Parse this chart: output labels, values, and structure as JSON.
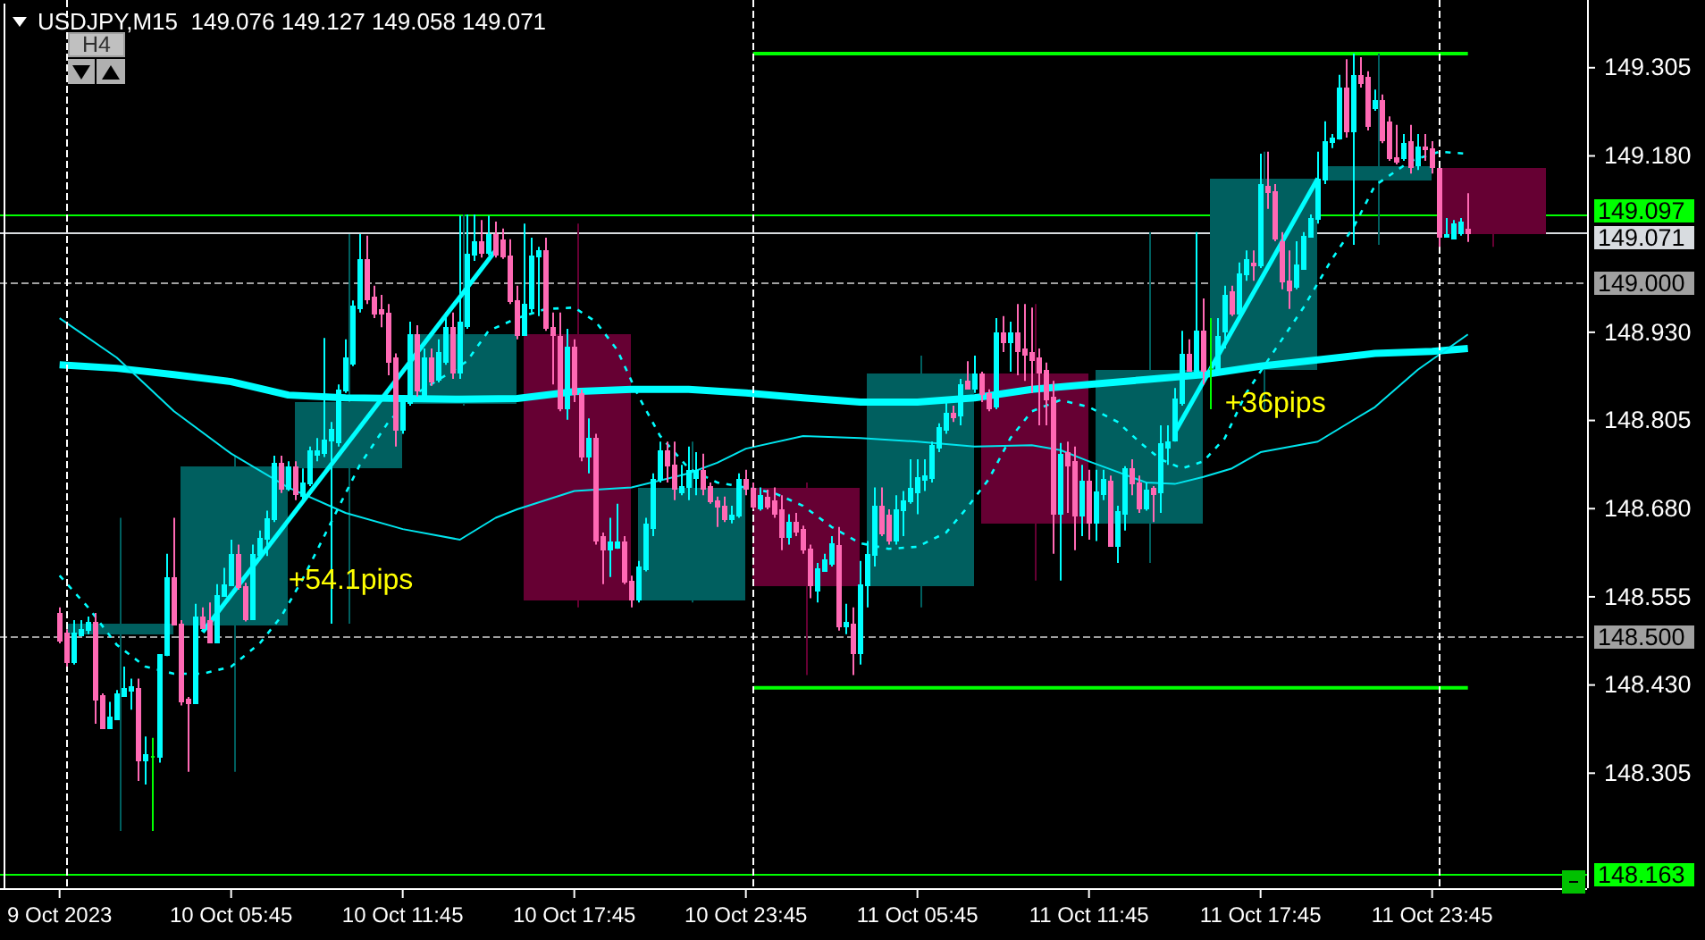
{
  "chart_data": {
    "type": "candlestick",
    "title": "USDJPY,M15  149.076 149.127 149.058 149.071",
    "annotations": [
      "H4",
      {
        "text": "+54.1pips",
        "x": "2023-10-10T06:45",
        "y": 148.611
      },
      {
        "text": "+36pips",
        "x": "2023-10-11T14:45",
        "y": 148.788
      }
    ],
    "x": [
      "2023-10-09T23:45",
      "2023-10-10T00:00",
      "2023-10-10T00:15",
      "2023-10-10T00:30",
      "2023-10-10T00:45",
      "2023-10-10T01:00",
      "2023-10-10T01:15",
      "2023-10-10T01:30",
      "2023-10-10T01:45",
      "2023-10-10T02:00",
      "2023-10-10T02:15",
      "2023-10-10T02:30",
      "2023-10-10T02:45",
      "2023-10-10T03:00",
      "2023-10-10T03:15",
      "2023-10-10T03:30",
      "2023-10-10T03:45",
      "2023-10-10T04:00",
      "2023-10-10T04:15",
      "2023-10-10T04:30",
      "2023-10-10T04:45",
      "2023-10-10T05:00",
      "2023-10-10T05:15",
      "2023-10-10T05:30",
      "2023-10-10T05:45",
      "2023-10-10T06:00",
      "2023-10-10T06:15",
      "2023-10-10T06:30",
      "2023-10-10T06:45",
      "2023-10-10T07:00",
      "2023-10-10T07:15",
      "2023-10-10T07:30",
      "2023-10-10T07:45",
      "2023-10-10T08:00",
      "2023-10-10T08:15",
      "2023-10-10T08:30",
      "2023-10-10T08:45",
      "2023-10-10T09:00",
      "2023-10-10T09:15",
      "2023-10-10T09:30",
      "2023-10-10T09:45",
      "2023-10-10T10:00",
      "2023-10-10T10:15",
      "2023-10-10T10:30",
      "2023-10-10T10:45",
      "2023-10-10T11:00",
      "2023-10-10T11:15",
      "2023-10-10T11:30",
      "2023-10-10T11:45",
      "2023-10-10T12:00",
      "2023-10-10T12:15",
      "2023-10-10T12:30",
      "2023-10-10T12:45",
      "2023-10-10T13:00",
      "2023-10-10T13:15",
      "2023-10-10T13:30",
      "2023-10-10T13:45",
      "2023-10-10T14:00",
      "2023-10-10T14:15",
      "2023-10-10T14:30",
      "2023-10-10T14:45",
      "2023-10-10T15:00",
      "2023-10-10T15:15",
      "2023-10-10T15:30",
      "2023-10-10T15:45",
      "2023-10-10T16:00",
      "2023-10-10T16:15",
      "2023-10-10T16:30",
      "2023-10-10T16:45",
      "2023-10-10T17:00",
      "2023-10-10T17:15",
      "2023-10-10T17:30",
      "2023-10-10T17:45",
      "2023-10-10T18:00",
      "2023-10-10T18:15",
      "2023-10-10T18:30",
      "2023-10-10T18:45",
      "2023-10-10T19:00",
      "2023-10-10T19:15",
      "2023-10-10T19:30",
      "2023-10-10T19:45",
      "2023-10-10T20:00",
      "2023-10-10T20:15",
      "2023-10-10T20:30",
      "2023-10-10T20:45",
      "2023-10-10T21:00",
      "2023-10-10T21:15",
      "2023-10-10T21:30",
      "2023-10-10T21:45",
      "2023-10-10T22:00",
      "2023-10-10T22:15",
      "2023-10-10T22:30",
      "2023-10-10T22:45",
      "2023-10-10T23:00",
      "2023-10-10T23:15",
      "2023-10-10T23:30",
      "2023-10-10T23:45",
      "2023-10-11T00:00",
      "2023-10-11T00:15",
      "2023-10-11T00:30",
      "2023-10-11T00:45",
      "2023-10-11T01:00",
      "2023-10-11T01:15",
      "2023-10-11T01:30",
      "2023-10-11T01:45",
      "2023-10-11T02:00",
      "2023-10-11T02:15",
      "2023-10-11T02:30",
      "2023-10-11T02:45",
      "2023-10-11T03:00",
      "2023-10-11T03:15",
      "2023-10-11T03:30",
      "2023-10-11T03:45",
      "2023-10-11T04:00",
      "2023-10-11T04:15",
      "2023-10-11T04:30",
      "2023-10-11T04:45",
      "2023-10-11T05:00",
      "2023-10-11T05:15",
      "2023-10-11T05:30",
      "2023-10-11T05:45",
      "2023-10-11T06:00",
      "2023-10-11T06:15",
      "2023-10-11T06:30",
      "2023-10-11T06:45",
      "2023-10-11T07:00",
      "2023-10-11T07:15",
      "2023-10-11T07:30",
      "2023-10-11T07:45",
      "2023-10-11T08:00",
      "2023-10-11T08:15",
      "2023-10-11T08:30",
      "2023-10-11T08:45",
      "2023-10-11T09:00",
      "2023-10-11T09:15",
      "2023-10-11T09:30",
      "2023-10-11T09:45",
      "2023-10-11T10:00",
      "2023-10-11T10:15",
      "2023-10-11T10:30",
      "2023-10-11T10:45",
      "2023-10-11T11:00",
      "2023-10-11T11:15",
      "2023-10-11T11:30",
      "2023-10-11T11:45",
      "2023-10-11T12:00",
      "2023-10-11T12:15",
      "2023-10-11T12:30",
      "2023-10-11T12:45",
      "2023-10-11T13:00",
      "2023-10-11T13:15",
      "2023-10-11T13:30",
      "2023-10-11T13:45",
      "2023-10-11T14:00",
      "2023-10-11T14:15",
      "2023-10-11T14:30",
      "2023-10-11T14:45",
      "2023-10-11T15:00",
      "2023-10-11T15:15",
      "2023-10-11T15:30",
      "2023-10-11T15:45",
      "2023-10-11T16:00",
      "2023-10-11T16:15",
      "2023-10-11T16:30",
      "2023-10-11T16:45",
      "2023-10-11T17:00",
      "2023-10-11T17:15",
      "2023-10-11T17:30",
      "2023-10-11T17:45",
      "2023-10-11T18:00",
      "2023-10-11T18:15",
      "2023-10-11T18:30",
      "2023-10-11T18:45",
      "2023-10-11T19:00",
      "2023-10-11T19:15",
      "2023-10-11T19:30",
      "2023-10-11T19:45",
      "2023-10-11T20:00",
      "2023-10-11T20:15",
      "2023-10-11T20:30",
      "2023-10-11T20:45",
      "2023-10-11T21:00",
      "2023-10-11T21:15",
      "2023-10-11T21:30",
      "2023-10-11T21:45",
      "2023-10-11T22:00",
      "2023-10-11T22:15",
      "2023-10-11T22:30",
      "2023-10-11T22:45",
      "2023-10-11T23:00",
      "2023-10-11T23:15",
      "2023-10-11T23:30",
      "2023-10-11T23:45",
      "2023-10-12T00:00",
      "2023-10-12T00:15",
      "2023-10-12T00:30",
      "2023-10-12T00:45",
      "2023-10-12T01:00"
    ],
    "ohlc": [
      [
        148.532,
        148.54,
        148.489,
        148.494
      ],
      [
        148.504,
        148.509,
        148.456,
        148.464
      ],
      [
        148.464,
        148.522,
        148.459,
        148.504
      ],
      [
        148.502,
        148.522,
        148.499,
        148.509
      ],
      [
        148.509,
        148.527,
        148.502,
        148.52
      ],
      [
        148.52,
        148.532,
        148.375,
        148.411
      ],
      [
        148.416,
        148.418,
        148.37,
        148.37
      ],
      [
        148.37,
        148.406,
        148.37,
        148.385
      ],
      [
        148.383,
        148.423,
        148.38,
        148.418
      ],
      [
        148.416,
        148.456,
        148.416,
        148.426
      ],
      [
        148.423,
        148.439,
        148.395,
        148.428
      ],
      [
        148.426,
        148.439,
        148.294,
        148.325
      ],
      [
        148.325,
        148.357,
        148.289,
        148.332
      ],
      [
        148.33,
        148.355,
        148.223,
        148.33
      ],
      [
        148.33,
        148.474,
        148.32,
        148.474
      ],
      [
        148.474,
        148.616,
        148.471,
        148.583
      ],
      [
        148.583,
        148.667,
        148.515,
        148.517
      ],
      [
        148.517,
        148.522,
        148.401,
        148.408
      ],
      [
        148.411,
        148.413,
        148.307,
        148.406
      ],
      [
        148.406,
        148.545,
        148.403,
        148.527
      ],
      [
        148.527,
        148.54,
        148.512,
        148.512
      ],
      [
        148.522,
        148.547,
        148.492,
        148.492
      ],
      [
        148.492,
        148.573,
        148.489,
        148.558
      ],
      [
        148.558,
        148.596,
        148.558,
        148.573
      ],
      [
        148.573,
        148.636,
        148.57,
        148.616
      ],
      [
        148.616,
        148.629,
        148.565,
        148.57
      ],
      [
        148.57,
        148.575,
        148.52,
        148.525
      ],
      [
        148.525,
        148.629,
        148.522,
        148.616
      ],
      [
        148.616,
        148.649,
        148.608,
        148.639
      ],
      [
        148.639,
        148.677,
        148.613,
        148.667
      ],
      [
        148.667,
        148.755,
        148.661,
        148.745
      ],
      [
        148.745,
        148.755,
        148.702,
        148.71
      ],
      [
        148.71,
        148.747,
        148.705,
        148.74
      ],
      [
        148.74,
        148.747,
        148.692,
        148.702
      ],
      [
        148.699,
        148.737,
        148.687,
        148.717
      ],
      [
        148.717,
        148.768,
        148.712,
        148.763
      ],
      [
        148.758,
        148.78,
        148.747,
        148.763
      ],
      [
        148.76,
        148.922,
        148.753,
        148.778
      ],
      [
        148.778,
        148.803,
        148.517,
        148.793
      ],
      [
        148.775,
        148.856,
        148.768,
        148.849
      ],
      [
        148.849,
        148.92,
        148.844,
        148.894
      ],
      [
        148.887,
        148.975,
        148.882,
        148.968
      ],
      [
        148.965,
        149.069,
        148.958,
        149.034
      ],
      [
        149.034,
        149.067,
        148.97,
        148.978
      ],
      [
        148.981,
        148.996,
        148.95,
        148.958
      ],
      [
        148.963,
        148.983,
        148.937,
        148.958
      ],
      [
        148.958,
        148.97,
        148.869,
        148.889
      ],
      [
        148.894,
        148.9,
        148.768,
        148.793
      ],
      [
        148.793,
        148.839,
        148.786,
        148.831
      ],
      [
        148.831,
        148.945,
        148.826,
        148.927
      ],
      [
        148.927,
        148.94,
        148.839,
        148.849
      ],
      [
        148.836,
        148.907,
        148.831,
        148.894
      ],
      [
        148.894,
        148.907,
        148.854,
        148.861
      ],
      [
        148.864,
        148.92,
        148.859,
        148.902
      ],
      [
        148.889,
        148.958,
        148.884,
        148.937
      ],
      [
        148.937,
        148.958,
        148.864,
        148.874
      ],
      [
        148.874,
        149.095,
        148.864,
        148.945
      ],
      [
        148.94,
        149.097,
        148.935,
        149.041
      ],
      [
        149.041,
        149.097,
        149.031,
        149.059
      ],
      [
        149.059,
        149.089,
        149.036,
        149.044
      ],
      [
        149.044,
        149.095,
        149.039,
        149.069
      ],
      [
        149.069,
        149.087,
        149.036,
        149.041
      ],
      [
        149.062,
        149.077,
        149.034,
        149.039
      ],
      [
        149.039,
        149.062,
        148.97,
        148.975
      ],
      [
        148.975,
        148.996,
        148.92,
        148.927
      ],
      [
        148.927,
        149.084,
        148.925,
        148.97
      ],
      [
        148.965,
        149.064,
        148.958,
        149.039
      ],
      [
        149.039,
        149.051,
        148.953,
        149.046
      ],
      [
        149.046,
        149.064,
        148.932,
        148.937
      ],
      [
        148.937,
        148.958,
        148.856,
        148.927
      ],
      [
        148.925,
        148.958,
        148.818,
        148.824
      ],
      [
        148.824,
        148.935,
        148.806,
        148.91
      ],
      [
        148.91,
        148.92,
        148.831,
        148.844
      ],
      [
        148.844,
        148.849,
        148.747,
        148.755
      ],
      [
        148.755,
        148.808,
        148.73,
        148.78
      ],
      [
        148.78,
        148.786,
        148.629,
        148.636
      ],
      [
        148.641,
        148.646,
        148.573,
        148.623
      ],
      [
        148.623,
        148.667,
        148.583,
        148.634
      ],
      [
        148.626,
        148.687,
        148.623,
        148.634
      ],
      [
        148.634,
        148.641,
        148.573,
        148.578
      ],
      [
        148.578,
        148.585,
        148.54,
        148.553
      ],
      [
        148.553,
        148.606,
        148.547,
        148.598
      ],
      [
        148.596,
        148.667,
        148.591,
        148.659
      ],
      [
        148.654,
        148.73,
        148.641,
        148.722
      ],
      [
        148.722,
        148.775,
        148.717,
        148.763
      ],
      [
        148.763,
        148.775,
        148.717,
        148.742
      ],
      [
        148.742,
        148.775,
        148.692,
        148.71
      ],
      [
        148.705,
        148.742,
        148.699,
        148.712
      ],
      [
        148.712,
        148.768,
        148.692,
        148.735
      ],
      [
        148.725,
        148.76,
        148.699,
        148.735
      ],
      [
        148.735,
        148.758,
        148.699,
        148.71
      ],
      [
        148.712,
        148.717,
        148.687,
        148.692
      ],
      [
        148.692,
        148.697,
        148.654,
        148.684
      ],
      [
        148.684,
        148.697,
        148.661,
        148.667
      ],
      [
        148.667,
        148.684,
        148.659,
        148.672
      ],
      [
        148.672,
        148.73,
        148.667,
        148.722
      ],
      [
        148.722,
        148.735,
        148.699,
        148.71
      ],
      [
        148.71,
        148.717,
        148.679,
        148.684
      ],
      [
        148.682,
        148.71,
        148.677,
        148.699
      ],
      [
        148.697,
        148.707,
        148.679,
        148.684
      ],
      [
        148.692,
        148.71,
        148.667,
        148.674
      ],
      [
        148.679,
        148.699,
        148.621,
        148.641
      ],
      [
        148.641,
        148.672,
        148.629,
        148.661
      ],
      [
        148.661,
        148.674,
        148.641,
        148.649
      ],
      [
        148.651,
        148.656,
        148.616,
        148.623
      ],
      [
        148.623,
        148.629,
        148.553,
        148.573
      ],
      [
        148.565,
        148.603,
        148.547,
        148.596
      ],
      [
        148.593,
        148.616,
        148.591,
        148.608
      ],
      [
        148.603,
        148.641,
        148.598,
        148.631
      ],
      [
        148.629,
        148.654,
        148.507,
        148.515
      ],
      [
        148.515,
        148.545,
        148.502,
        148.52
      ],
      [
        148.517,
        148.54,
        148.444,
        148.477
      ],
      [
        148.477,
        148.606,
        148.459,
        148.573
      ],
      [
        148.573,
        148.634,
        148.54,
        148.616
      ],
      [
        148.616,
        148.71,
        148.598,
        148.684
      ],
      [
        148.684,
        148.71,
        148.641,
        148.646
      ],
      [
        148.672,
        148.679,
        148.629,
        148.636
      ],
      [
        148.636,
        148.699,
        148.629,
        148.679
      ],
      [
        148.679,
        148.705,
        148.641,
        148.692
      ],
      [
        148.692,
        148.75,
        148.687,
        148.71
      ],
      [
        148.705,
        148.75,
        148.672,
        148.725
      ],
      [
        148.722,
        148.75,
        148.705,
        148.727
      ],
      [
        148.725,
        148.775,
        148.717,
        148.77
      ],
      [
        148.768,
        148.801,
        148.76,
        148.796
      ],
      [
        148.793,
        148.831,
        148.786,
        148.816
      ],
      [
        148.816,
        148.826,
        148.803,
        148.811
      ],
      [
        148.813,
        148.864,
        148.798,
        148.856
      ],
      [
        148.861,
        148.889,
        148.849,
        148.851
      ],
      [
        148.851,
        148.897,
        148.844,
        148.872
      ],
      [
        148.872,
        148.874,
        148.831,
        148.844
      ],
      [
        148.844,
        148.849,
        148.818,
        148.824
      ],
      [
        148.826,
        148.95,
        148.821,
        148.93
      ],
      [
        148.93,
        148.953,
        148.902,
        148.917
      ],
      [
        148.917,
        148.945,
        148.874,
        148.93
      ],
      [
        148.93,
        148.97,
        148.869,
        148.905
      ],
      [
        148.907,
        148.97,
        148.861,
        148.9
      ],
      [
        148.902,
        148.965,
        148.844,
        148.892
      ],
      [
        148.894,
        148.907,
        148.798,
        148.874
      ],
      [
        148.877,
        148.887,
        148.798,
        148.836
      ],
      [
        148.839,
        148.861,
        148.616,
        148.674
      ],
      [
        148.674,
        148.773,
        148.578,
        148.758
      ],
      [
        148.76,
        148.775,
        148.674,
        148.742
      ],
      [
        148.747,
        148.768,
        148.621,
        148.672
      ],
      [
        148.672,
        148.742,
        148.641,
        148.72
      ],
      [
        148.72,
        148.735,
        148.636,
        148.661
      ],
      [
        148.661,
        148.735,
        148.634,
        148.705
      ],
      [
        148.702,
        148.735,
        148.692,
        148.722
      ],
      [
        148.72,
        148.727,
        148.626,
        148.629
      ],
      [
        148.629,
        148.684,
        148.603,
        148.677
      ],
      [
        148.674,
        148.74,
        148.649,
        148.737
      ],
      [
        148.737,
        148.75,
        148.699,
        148.717
      ],
      [
        148.717,
        148.727,
        148.674,
        148.682
      ],
      [
        148.682,
        148.717,
        148.677,
        148.707
      ],
      [
        148.71,
        148.712,
        148.661,
        148.702
      ],
      [
        148.705,
        148.798,
        148.674,
        148.773
      ],
      [
        148.768,
        148.798,
        148.742,
        148.775
      ],
      [
        148.778,
        148.851,
        148.775,
        148.836
      ],
      [
        148.831,
        148.932,
        148.826,
        148.9
      ],
      [
        148.9,
        148.92,
        148.874,
        148.877
      ],
      [
        148.877,
        149.072,
        148.874,
        148.932
      ],
      [
        148.932,
        148.978,
        148.856,
        148.877
      ],
      [
        148.879,
        148.95,
        148.821,
        148.879
      ],
      [
        148.877,
        148.95,
        148.869,
        148.925
      ],
      [
        148.932,
        148.996,
        148.907,
        148.983
      ],
      [
        148.988,
        148.996,
        148.953,
        148.958
      ],
      [
        148.958,
        149.029,
        148.953,
        149.013
      ],
      [
        149.013,
        149.046,
        149.003,
        149.034
      ],
      [
        149.029,
        149.046,
        149.003,
        149.026
      ],
      [
        149.026,
        149.183,
        149.021,
        149.14
      ],
      [
        149.138,
        149.186,
        149.105,
        149.13
      ],
      [
        149.13,
        149.14,
        149.059,
        149.064
      ],
      [
        149.059,
        149.072,
        148.991,
        149.003
      ],
      [
        149.003,
        149.046,
        148.963,
        148.991
      ],
      [
        148.996,
        149.059,
        148.991,
        149.026
      ],
      [
        149.021,
        149.072,
        149.021,
        149.067
      ],
      [
        149.067,
        149.097,
        149.064,
        149.092
      ],
      [
        149.092,
        149.186,
        149.084,
        149.148
      ],
      [
        149.148,
        149.229,
        149.14,
        149.201
      ],
      [
        149.201,
        149.211,
        149.191,
        149.206
      ],
      [
        149.206,
        149.295,
        149.203,
        149.277
      ],
      [
        149.277,
        149.317,
        149.206,
        149.216
      ],
      [
        149.216,
        149.325,
        149.054,
        149.295
      ],
      [
        149.295,
        149.32,
        149.277,
        149.285
      ],
      [
        149.292,
        149.3,
        149.216,
        149.224
      ],
      [
        149.249,
        149.274,
        149.244,
        149.259
      ],
      [
        149.259,
        149.267,
        149.198,
        149.203
      ],
      [
        149.229,
        149.236,
        149.173,
        149.178
      ],
      [
        149.178,
        149.224,
        149.168,
        149.173
      ],
      [
        149.178,
        149.211,
        149.173,
        149.198
      ],
      [
        149.201,
        149.224,
        149.155,
        149.165
      ],
      [
        149.168,
        149.211,
        149.16,
        149.193
      ],
      [
        149.193,
        149.211,
        149.173,
        149.191
      ],
      [
        149.191,
        149.201,
        149.155,
        149.165
      ],
      [
        149.163,
        149.163,
        149.051,
        149.067
      ],
      [
        149.067,
        149.092,
        149.064,
        149.069
      ],
      [
        149.064,
        149.089,
        149.062,
        149.084
      ],
      [
        149.072,
        149.092,
        149.067,
        149.087
      ],
      [
        149.076,
        149.127,
        149.058,
        149.071
      ]
    ],
    "colors": [
      "#ff69b4",
      "#ff69b4",
      "#00ffff",
      "#00ffff",
      "#00ffff",
      "#ff69b4",
      "#ff69b4",
      "#00ffff",
      "#00ffff",
      "#00ffff",
      "#00ffff",
      "#ff69b4",
      "#00ffff",
      "#00ff00",
      "#00ffff",
      "#00ffff",
      "#ff69b4",
      "#ff69b4",
      "#ff69b4",
      "#00ffff",
      "#ff69b4",
      "#ff69b4",
      "#00ffff",
      "#00ffff",
      "#00ffff",
      "#ff69b4",
      "#ff69b4",
      "#00ffff",
      "#00ffff",
      "#00ffff",
      "#00ffff",
      "#ff69b4",
      "#00ffff",
      "#ff69b4",
      "#00ffff",
      "#00ffff",
      "#00ffff",
      "#00ffff",
      "#00ffff",
      "#00ffff",
      "#00ffff",
      "#00ffff",
      "#00ffff",
      "#ff69b4",
      "#ff69b4",
      "#ff69b4",
      "#ff69b4",
      "#ff69b4",
      "#00ffff",
      "#00ffff",
      "#ff69b4",
      "#00ffff",
      "#ff69b4",
      "#00ffff",
      "#00ffff",
      "#ff69b4",
      "#00ffff",
      "#00ffff",
      "#00ffff",
      "#ff69b4",
      "#00ffff",
      "#ff69b4",
      "#ff69b4",
      "#ff69b4",
      "#ff69b4",
      "#00ffff",
      "#00ffff",
      "#00ffff",
      "#ff69b4",
      "#ff69b4",
      "#ff69b4",
      "#00ffff",
      "#ff69b4",
      "#ff69b4",
      "#00ffff",
      "#ff69b4",
      "#ff69b4",
      "#00ffff",
      "#00ffff",
      "#ff69b4",
      "#ff69b4",
      "#00ffff",
      "#00ffff",
      "#00ffff",
      "#00ffff",
      "#ff69b4",
      "#ff69b4",
      "#00ffff",
      "#00ffff",
      "#00ffff",
      "#ff69b4",
      "#ff69b4",
      "#ff69b4",
      "#ff69b4",
      "#00ffff",
      "#00ffff",
      "#ff69b4",
      "#ff69b4",
      "#00ffff",
      "#ff69b4",
      "#ff69b4",
      "#ff69b4",
      "#00ffff",
      "#ff69b4",
      "#ff69b4",
      "#ff69b4",
      "#00ffff",
      "#00ffff",
      "#00ffff",
      "#ff69b4",
      "#00ffff",
      "#ff69b4",
      "#00ffff",
      "#00ffff",
      "#00ffff",
      "#ff69b4",
      "#ff69b4",
      "#00ffff",
      "#00ffff",
      "#00ffff",
      "#00ffff",
      "#00ffff",
      "#00ffff",
      "#00ffff",
      "#00ffff",
      "#ff69b4",
      "#00ffff",
      "#ff69b4",
      "#00ffff",
      "#ff69b4",
      "#ff69b4",
      "#00ffff",
      "#ff69b4",
      "#00ffff",
      "#ff69b4",
      "#ff69b4",
      "#ff69b4",
      "#ff69b4",
      "#ff69b4",
      "#ff69b4",
      "#00ffff",
      "#ff69b4",
      "#ff69b4",
      "#00ffff",
      "#ff69b4",
      "#00ffff",
      "#00ffff",
      "#ff69b4",
      "#00ffff",
      "#00ffff",
      "#ff69b4",
      "#ff69b4",
      "#00ffff",
      "#ff69b4",
      "#00ffff",
      "#00ffff",
      "#00ffff",
      "#00ffff",
      "#ff69b4",
      "#00ffff",
      "#ff69b4",
      "#00ff00",
      "#00ffff",
      "#00ffff",
      "#ff69b4",
      "#00ffff",
      "#00ffff",
      "#ff69b4",
      "#00ffff",
      "#ff69b4",
      "#ff69b4",
      "#ff69b4",
      "#ff69b4",
      "#00ffff",
      "#00ffff",
      "#00ffff",
      "#00ffff",
      "#00ffff",
      "#00ffff",
      "#00ffff",
      "#ff69b4",
      "#00ffff",
      "#ff69b4",
      "#ff69b4",
      "#00ffff",
      "#ff69b4",
      "#ff69b4",
      "#ff69b4",
      "#00ffff",
      "#ff69b4",
      "#00ffff",
      "#ff69b4",
      "#ff69b4",
      "#ff69b4",
      "#00ffff",
      "#00ffff",
      "#00ffff",
      "#ff69b4"
    ],
    "series": [
      {
        "type": "line",
        "color": "#00ff00",
        "x": [
          "2023-10-11T00:00",
          "2023-10-12T01:00"
        ],
        "values": [
          149.325,
          149.325
        ]
      },
      {
        "type": "line",
        "color": "#00ff00",
        "x": [
          "2023-10-11T00:00",
          "2023-10-12T01:00"
        ],
        "values": [
          148.426,
          148.426
        ]
      },
      {
        "type": "candlestick",
        "x": [
          "2023-10-10T01:52",
          "2023-10-10T05:52",
          "2023-10-10T09:52",
          "2023-10-10T13:52",
          "2023-10-10T17:52",
          "2023-10-10T21:52",
          "2023-10-11T01:52",
          "2023-10-11T05:52",
          "2023-10-11T09:52",
          "2023-10-11T13:52",
          "2023-10-11T17:52",
          "2023-10-11T21:52",
          "2023-10-12T01:52"
        ],
        "ohlc": [
          [
            148.504,
            148.667,
            148.223,
            148.517
          ],
          [
            148.517,
            148.755,
            148.307,
            148.74
          ],
          [
            148.74,
            149.069,
            148.517,
            148.831
          ],
          [
            148.831,
            149.097,
            148.826,
            148.927
          ],
          [
            148.927,
            149.084,
            148.54,
            148.553
          ],
          [
            148.553,
            148.775,
            148.547,
            148.71
          ],
          [
            148.71,
            148.717,
            148.444,
            148.573
          ],
          [
            148.573,
            148.897,
            148.54,
            148.872
          ],
          [
            148.872,
            148.97,
            148.578,
            148.661
          ],
          [
            148.661,
            149.072,
            148.603,
            148.877
          ],
          [
            148.879,
            149.186,
            148.821,
            149.148
          ],
          [
            149.148,
            149.325,
            149.054,
            149.165
          ],
          [
            149.163,
            149.163,
            149.051,
            149.071
          ]
        ],
        "colors": [
          "#005f5f",
          "#005f5f",
          "#005f5f",
          "#005f5f",
          "#660033",
          "#005f5f",
          "#660033",
          "#005f5f",
          "#660033",
          "#005f5f",
          "#005f5f",
          "#005f5f",
          "#660033"
        ]
      },
      {
        "type": "line",
        "color": "#00ffff",
        "x": [
          "2023-10-09T23:45",
          "2023-10-10T01:45",
          "2023-10-10T03:45",
          "2023-10-10T05:45",
          "2023-10-10T07:45",
          "2023-10-10T09:45",
          "2023-10-10T11:45",
          "2023-10-10T13:45",
          "2023-10-10T15:45",
          "2023-10-10T17:45",
          "2023-10-10T19:45",
          "2023-10-10T21:45",
          "2023-10-10T23:45",
          "2023-10-11T01:45",
          "2023-10-11T03:45",
          "2023-10-11T05:45",
          "2023-10-11T07:45",
          "2023-10-11T09:45",
          "2023-10-11T11:45",
          "2023-10-11T13:45",
          "2023-10-11T15:45",
          "2023-10-11T17:45",
          "2023-10-11T19:45",
          "2023-10-11T21:45",
          "2023-10-11T23:45",
          "2023-10-12T01:00"
        ],
        "values": [
          148.884,
          148.879,
          148.87,
          148.86,
          148.841,
          148.837,
          148.836,
          148.835,
          148.836,
          148.846,
          148.849,
          148.849,
          148.844,
          148.837,
          148.831,
          148.831,
          148.837,
          148.849,
          148.856,
          148.863,
          148.87,
          148.882,
          148.891,
          148.9,
          148.903,
          148.907
        ]
      },
      {
        "type": "line",
        "color": "#00e5ee",
        "x": [
          "2023-10-09T23:45",
          "2023-10-10T01:45",
          "2023-10-10T03:45",
          "2023-10-10T05:45",
          "2023-10-10T07:45",
          "2023-10-10T09:45",
          "2023-10-10T11:45",
          "2023-10-10T13:45",
          "2023-10-10T15:00",
          "2023-10-10T15:45",
          "2023-10-10T17:45",
          "2023-10-10T19:45",
          "2023-10-10T21:45",
          "2023-10-10T22:45",
          "2023-10-10T23:45",
          "2023-10-11T01:45",
          "2023-10-11T03:45",
          "2023-10-11T05:45",
          "2023-10-11T07:45",
          "2023-10-11T09:45",
          "2023-10-11T10:45",
          "2023-10-11T11:45",
          "2023-10-11T12:45",
          "2023-10-11T13:45",
          "2023-10-11T14:45",
          "2023-10-11T15:45",
          "2023-10-11T16:45",
          "2023-10-11T17:45",
          "2023-10-11T19:45",
          "2023-10-11T21:45",
          "2023-10-11T23:15",
          "2023-10-12T01:00"
        ],
        "values": [
          148.95,
          148.894,
          148.818,
          148.758,
          148.71,
          148.674,
          148.651,
          148.636,
          148.667,
          148.679,
          148.705,
          148.71,
          148.73,
          148.745,
          148.765,
          148.783,
          148.78,
          148.775,
          148.768,
          148.77,
          148.763,
          148.747,
          148.732,
          148.717,
          148.715,
          148.725,
          148.737,
          148.76,
          148.775,
          148.824,
          148.877,
          148.927
        ]
      },
      {
        "type": "line",
        "color": "#00ffff",
        "line_style": "dashed",
        "x": [
          "2023-10-09T23:45",
          "2023-10-10T00:45",
          "2023-10-10T01:45",
          "2023-10-10T02:45",
          "2023-10-10T03:45",
          "2023-10-10T04:45",
          "2023-10-10T05:45",
          "2023-10-10T06:45",
          "2023-10-10T07:30",
          "2023-10-10T08:15",
          "2023-10-10T09:15",
          "2023-10-10T10:15",
          "2023-10-10T11:15",
          "2023-10-10T12:15",
          "2023-10-10T13:15",
          "2023-10-10T14:00",
          "2023-10-10T14:45",
          "2023-10-10T15:45",
          "2023-10-10T16:45",
          "2023-10-10T17:45",
          "2023-10-10T18:30",
          "2023-10-10T19:15",
          "2023-10-10T20:00",
          "2023-10-10T20:45",
          "2023-10-10T21:45",
          "2023-10-10T22:45",
          "2023-10-10T23:45",
          "2023-10-11T00:45",
          "2023-10-11T01:45",
          "2023-10-11T02:45",
          "2023-10-11T03:45",
          "2023-10-11T04:45",
          "2023-10-11T05:45",
          "2023-10-11T06:45",
          "2023-10-11T07:30",
          "2023-10-11T08:15",
          "2023-10-11T09:00",
          "2023-10-11T09:45",
          "2023-10-11T10:45",
          "2023-10-11T11:45",
          "2023-10-11T12:45",
          "2023-10-11T13:30",
          "2023-10-11T14:15",
          "2023-10-11T15:00",
          "2023-10-11T15:45",
          "2023-10-11T16:30",
          "2023-10-11T17:15",
          "2023-10-11T18:15",
          "2023-10-11T19:15",
          "2023-10-11T20:15",
          "2023-10-11T21:00",
          "2023-10-11T21:45",
          "2023-10-11T23:00",
          "2023-10-12T00:00",
          "2023-10-12T01:00"
        ],
        "values": [
          148.585,
          148.54,
          148.487,
          148.456,
          148.446,
          148.446,
          148.456,
          148.489,
          148.527,
          148.58,
          148.661,
          148.742,
          148.803,
          148.844,
          148.869,
          148.889,
          148.932,
          148.95,
          148.963,
          148.965,
          148.945,
          148.905,
          148.839,
          148.783,
          148.737,
          148.717,
          148.71,
          148.702,
          148.684,
          148.654,
          148.631,
          148.623,
          148.626,
          148.646,
          148.682,
          148.722,
          148.78,
          148.818,
          148.834,
          148.824,
          148.803,
          148.775,
          148.75,
          148.737,
          148.747,
          148.78,
          148.844,
          148.905,
          148.965,
          149.034,
          149.079,
          149.138,
          149.173,
          149.186,
          149.183
        ]
      },
      {
        "type": "line",
        "color": "#00ffff",
        "x": [
          "2023-10-10T04:45",
          "2023-10-10T15:00"
        ],
        "values": [
          148.505,
          149.046
        ]
      },
      {
        "type": "line",
        "color": "#00ffff",
        "x": [
          "2023-10-11T14:45",
          "2023-10-11T19:45"
        ],
        "values": [
          148.788,
          149.148
        ]
      }
    ],
    "xlim": [
      "2023-10-09T21:40",
      "2023-10-12T05:10"
    ],
    "ylim": [
      148.142,
      149.401
    ],
    "xticks": [
      {
        "value": "2023-10-09T23:45",
        "label": "9 Oct 2023"
      },
      {
        "value": "2023-10-10T05:45",
        "label": "10 Oct 05:45"
      },
      {
        "value": "2023-10-10T11:45",
        "label": "10 Oct 11:45"
      },
      {
        "value": "2023-10-10T17:45",
        "label": "10 Oct 17:45"
      },
      {
        "value": "2023-10-10T23:45",
        "label": "10 Oct 23:45"
      },
      {
        "value": "2023-10-11T05:45",
        "label": "11 Oct 05:45"
      },
      {
        "value": "2023-10-11T11:45",
        "label": "11 Oct 11:45"
      },
      {
        "value": "2023-10-11T17:45",
        "label": "11 Oct 17:45"
      },
      {
        "value": "2023-10-11T23:45",
        "label": "11 Oct 23:45"
      }
    ],
    "yticks": [
      149.305,
      {
        "value": 149.18,
        "label": "149.180"
      },
      {
        "value": 148.93,
        "label": "148.930"
      },
      148.805,
      {
        "value": 148.68,
        "label": "148.680"
      },
      148.555,
      {
        "value": 148.43,
        "label": "148.430"
      },
      148.305
    ],
    "ref_lines": [
      {
        "axis": "y",
        "value": 149.097,
        "label": "149.097",
        "color": "#00ff00",
        "line_style": "solid"
      },
      {
        "axis": "y",
        "value": 149.071,
        "label": "149.071",
        "color": "#d8dce0",
        "line_style": "solid"
      },
      {
        "axis": "y",
        "value": 149.0,
        "label": "149.000",
        "color": "#a0a0a0",
        "line_style": "dashed"
      },
      {
        "axis": "y",
        "value": 148.5,
        "label": "148.500",
        "color": "#a0a0a0",
        "line_style": "dashed"
      },
      {
        "axis": "y",
        "value": 148.163,
        "label": "148.163",
        "color": "#00ff00",
        "line_style": "solid"
      },
      {
        "axis": "x",
        "value": "2023-10-10T00:00",
        "color": "#ffffff",
        "line_style": "dashed"
      },
      {
        "axis": "x",
        "value": "2023-10-11T00:00",
        "color": "#ffffff",
        "line_style": "dashed"
      },
      {
        "axis": "x",
        "value": "2023-10-12T00:00",
        "color": "#ffffff",
        "line_style": "dashed"
      }
    ]
  }
}
